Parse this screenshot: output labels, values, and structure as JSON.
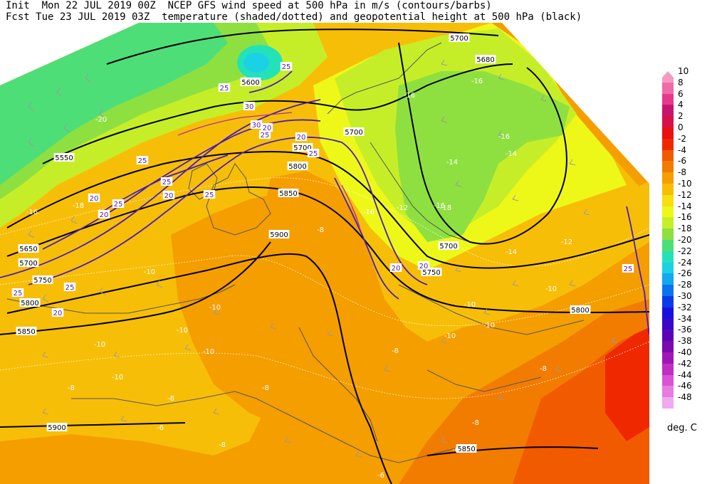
{
  "header": {
    "line1": "Init  Mon 22 JUL 2019 00Z  NCEP GFS wind speed at 500 hPa in m/s (contours/barbs)",
    "line2": "Fcst Tue 23 JUL 2019 03Z  temperature (shaded/dotted) and geopotential height at 500 hPa (black)"
  },
  "legend": {
    "unit": "deg. C",
    "entries": [
      {
        "label": "10",
        "color": "#f59ac0"
      },
      {
        "label": "8",
        "color": "#f06aa8"
      },
      {
        "label": "6",
        "color": "#e8388c"
      },
      {
        "label": "4",
        "color": "#c8146e"
      },
      {
        "label": "2",
        "color": "#d8104a"
      },
      {
        "label": "0",
        "color": "#e81010"
      },
      {
        "label": "-2",
        "color": "#f02800"
      },
      {
        "label": "-4",
        "color": "#f25a00"
      },
      {
        "label": "-6",
        "color": "#f27c00"
      },
      {
        "label": "-8",
        "color": "#f59e00"
      },
      {
        "label": "-10",
        "color": "#f7be08"
      },
      {
        "label": "-12",
        "color": "#f7de10"
      },
      {
        "label": "-14",
        "color": "#eef818"
      },
      {
        "label": "-16",
        "color": "#c6ee28"
      },
      {
        "label": "-18",
        "color": "#8ee040"
      },
      {
        "label": "-20",
        "color": "#4ede78"
      },
      {
        "label": "-22",
        "color": "#24e2b8"
      },
      {
        "label": "-24",
        "color": "#1ad2e4"
      },
      {
        "label": "-26",
        "color": "#12a8ec"
      },
      {
        "label": "-28",
        "color": "#0a74f0"
      },
      {
        "label": "-30",
        "color": "#0a3ae8"
      },
      {
        "label": "-32",
        "color": "#1a10e0"
      },
      {
        "label": "-34",
        "color": "#3a08c8"
      },
      {
        "label": "-36",
        "color": "#5a04b8"
      },
      {
        "label": "-38",
        "color": "#7c08b0"
      },
      {
        "label": "-40",
        "color": "#a018b4"
      },
      {
        "label": "-42",
        "color": "#c030c0"
      },
      {
        "label": "-44",
        "color": "#d854d4"
      },
      {
        "label": "-46",
        "color": "#e67ce2"
      },
      {
        "label": "-48",
        "color": "#f0a8f0"
      }
    ]
  },
  "map_labels": {
    "height": [
      "5700",
      "5680",
      "5550",
      "5600",
      "5700",
      "5700",
      "5700",
      "5800",
      "5850",
      "5900",
      "5650",
      "5700",
      "5750",
      "5800",
      "5850",
      "5750",
      "5800",
      "5900",
      "5850"
    ],
    "wind": [
      "25",
      "25",
      "20",
      "30",
      "30",
      "25",
      "20",
      "25",
      "25",
      "20",
      "25",
      "25",
      "20",
      "20",
      "25",
      "25",
      "20",
      "25",
      "20",
      "20",
      "25"
    ],
    "temperature": [
      "-16",
      "-16",
      "-16",
      "-14",
      "-14",
      "-16",
      "-16",
      "-12",
      "-18",
      "-20",
      "-16",
      "-18",
      "-14",
      "-12",
      "-10",
      "-8",
      "-10",
      "-10",
      "-10",
      "-10",
      "-10",
      "-8",
      "-10",
      "-8",
      "-8",
      "-6",
      "-8",
      "-8",
      "-8",
      "-10",
      "-6",
      "-6",
      "-8",
      "-10",
      "-10"
    ]
  }
}
